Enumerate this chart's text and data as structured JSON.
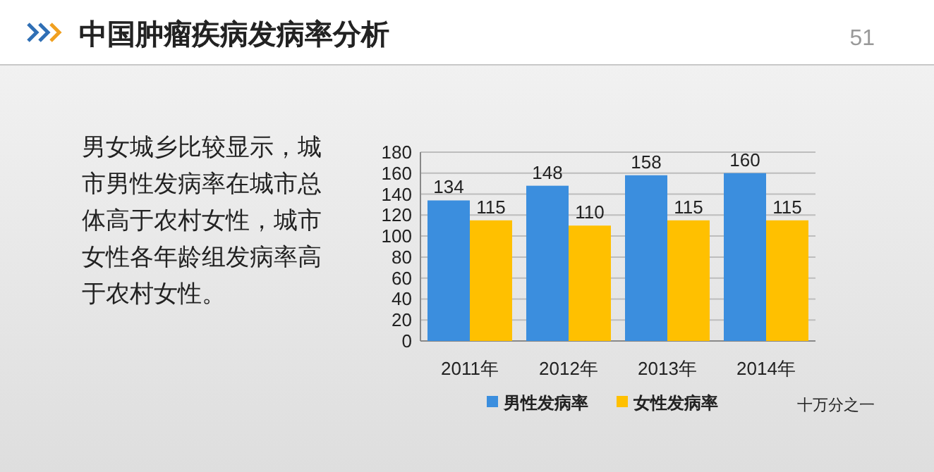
{
  "chart_data": {
    "type": "bar",
    "title": "中国肿瘤疾病发病率分析",
    "annotations": [
      "51",
      "男女城乡比较显示，城市男性发病率在城市总体高于农村女性，城市女性各年龄组发病率高于农村女性。",
      "十万分之一"
    ],
    "categories": [
      "2011年",
      "2012年",
      "2013年",
      "2014年"
    ],
    "series": [
      {
        "name": "男性发病率",
        "color": "#3b8ede",
        "values": [
          134,
          148,
          158,
          160
        ]
      },
      {
        "name": "女性发病率",
        "color": "#ffc000",
        "values": [
          115,
          110,
          115,
          115
        ]
      }
    ],
    "ylim": [
      0,
      180
    ],
    "yticks": [
      0,
      20,
      40,
      60,
      80,
      100,
      120,
      140,
      160,
      180
    ],
    "grid": "y",
    "legend": "bottom",
    "data_labels": true
  }
}
